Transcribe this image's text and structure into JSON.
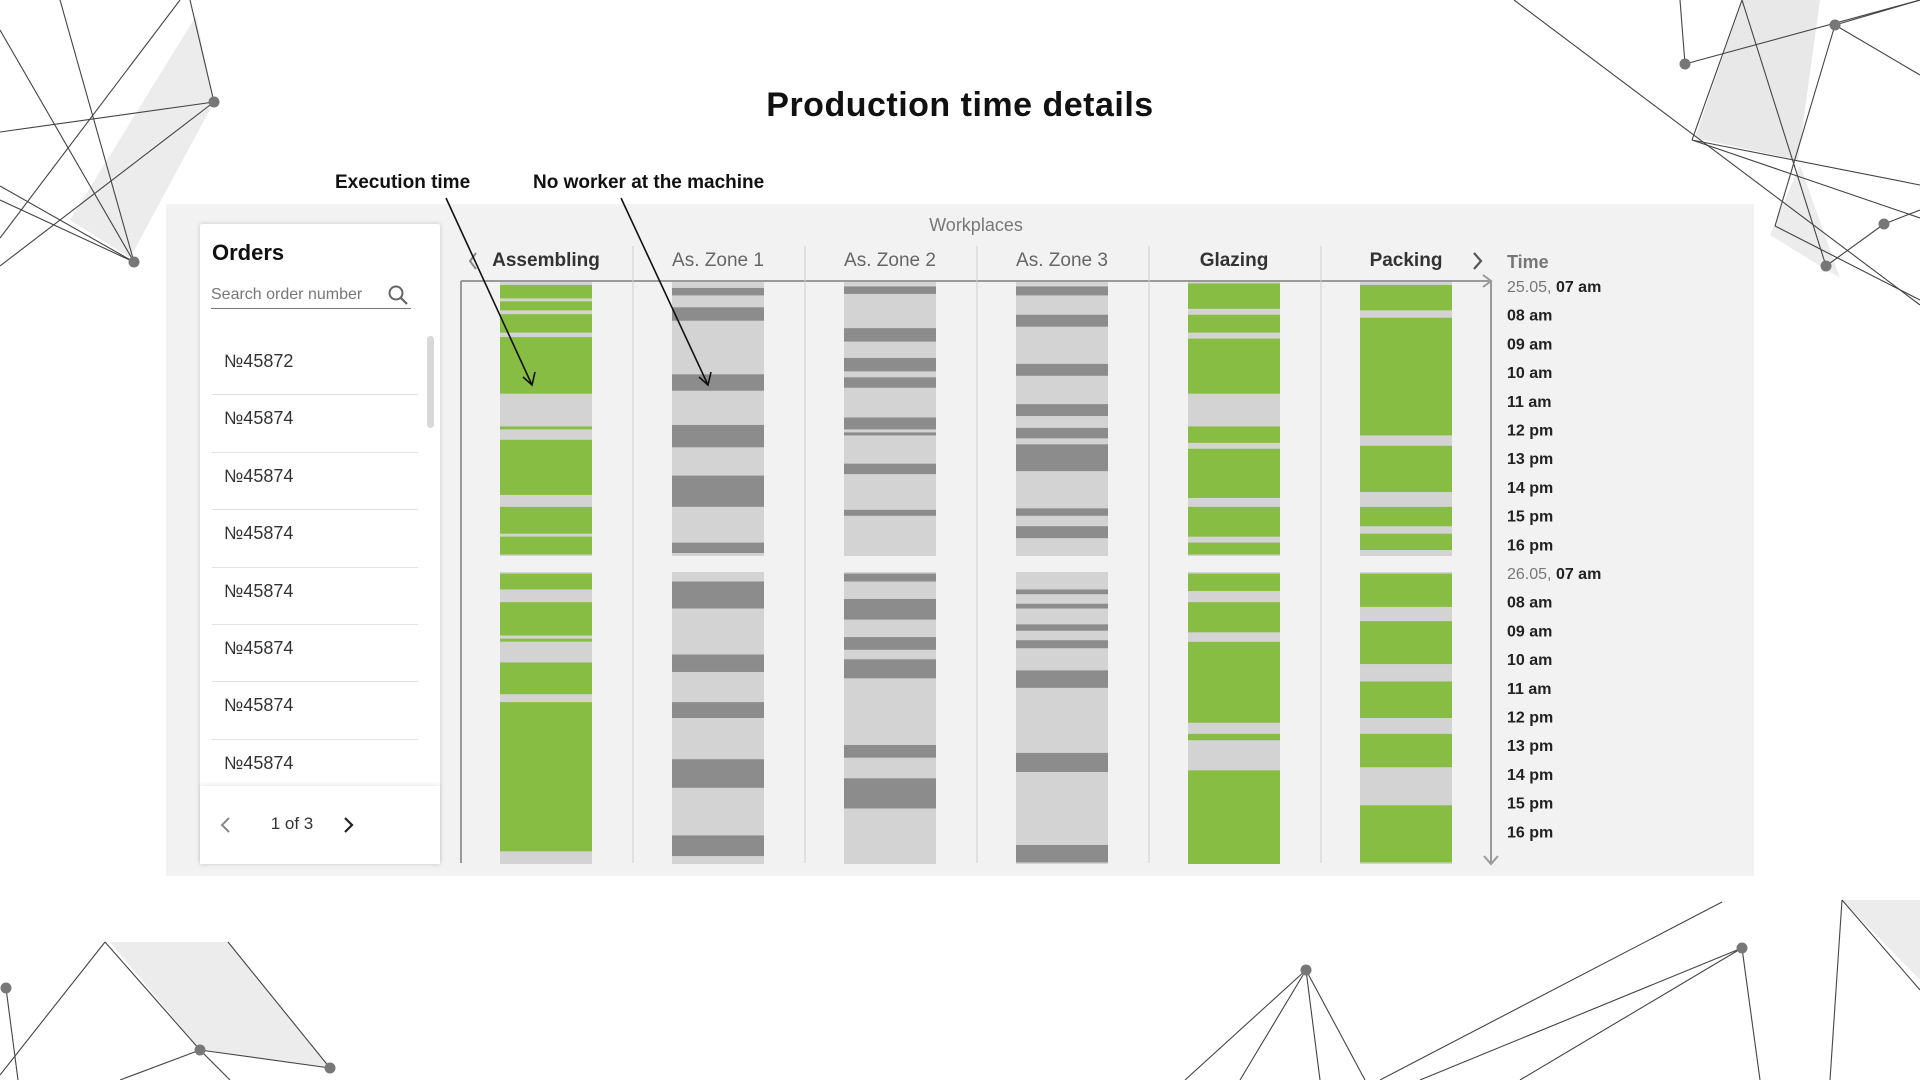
{
  "page_title": "Production time details",
  "annotations": {
    "execution_time": "Execution time",
    "no_worker": "No worker at the machine"
  },
  "orders_panel": {
    "title": "Orders",
    "search_placeholder": "Search order number",
    "items": [
      "№45872",
      "№45874",
      "№45874",
      "№45874",
      "№45874",
      "№45874",
      "№45874",
      "№45874"
    ],
    "pagination": "1 of 3"
  },
  "workplaces_label": "Workplaces",
  "time_label": "Time",
  "colors": {
    "execution": "#88bd44",
    "no_worker": "#8c8c8c",
    "idle": "#d3d3d3"
  },
  "columns": [
    {
      "name": "Assembling",
      "muted": false
    },
    {
      "name": "As. Zone 1",
      "muted": true
    },
    {
      "name": "As. Zone 2",
      "muted": true
    },
    {
      "name": "As. Zone 3",
      "muted": true
    },
    {
      "name": "Glazing",
      "muted": false
    },
    {
      "name": "Packing",
      "muted": false
    }
  ],
  "time_axis": {
    "days": [
      {
        "date": "25.05,",
        "hours": [
          "07 am",
          "08 am",
          "09 am",
          "10 am",
          "11 am",
          "12 pm",
          "13 pm",
          "14 pm",
          "15 pm",
          "16 pm"
        ]
      },
      {
        "date": "26.05,",
        "hours": [
          "07 am",
          "08 am",
          "09 am",
          "10 am",
          "11 am",
          "12 pm",
          "13 pm",
          "14 pm",
          "15 pm",
          "16 pm"
        ]
      }
    ]
  },
  "schedule": {
    "assembling": {
      "day1": [
        [
          "g",
          7.1,
          7.55
        ],
        [
          "g",
          7.65,
          7.95
        ],
        [
          "g",
          8.08,
          8.7
        ],
        [
          "g",
          8.85,
          10.75
        ],
        [
          "g",
          11.85,
          11.95
        ],
        [
          "g",
          12.3,
          14.15
        ],
        [
          "g",
          14.55,
          15.45
        ],
        [
          "g",
          15.55,
          16.15
        ]
      ],
      "day2": [
        [
          "g",
          7.05,
          7.55
        ],
        [
          "g",
          7.95,
          9.0
        ],
        [
          "g",
          9.1,
          9.1
        ],
        [
          "g",
          9.85,
          10.85
        ],
        [
          "g",
          11.1,
          15.8
        ]
      ]
    },
    "zone1": {
      "day1": [
        [
          "d",
          7.2,
          7.45
        ],
        [
          "d",
          7.85,
          8.3
        ],
        [
          "d",
          10.1,
          10.65
        ],
        [
          "d",
          11.8,
          12.55
        ],
        [
          "d",
          13.5,
          14.55
        ],
        [
          "d",
          15.75,
          16.1
        ]
      ],
      "day2": [
        [
          "d",
          7.3,
          8.15
        ],
        [
          "d",
          9.6,
          10.15
        ],
        [
          "d",
          11.1,
          11.6
        ],
        [
          "d",
          12.9,
          13.8
        ],
        [
          "d",
          15.3,
          15.95
        ]
      ]
    },
    "zone2": {
      "day1": [
        [
          "d",
          7.15,
          7.4
        ],
        [
          "d",
          8.55,
          9.0
        ],
        [
          "d",
          9.55,
          10.0
        ],
        [
          "d",
          10.2,
          10.55
        ],
        [
          "d",
          11.55,
          11.95
        ],
        [
          "d",
          12.05,
          12.15
        ],
        [
          "d",
          13.1,
          13.45
        ],
        [
          "d",
          14.65,
          14.85
        ]
      ],
      "day2": [
        [
          "d",
          7.05,
          7.3
        ],
        [
          "d",
          7.85,
          8.5
        ],
        [
          "d",
          9.05,
          9.45
        ],
        [
          "d",
          9.75,
          10.35
        ],
        [
          "d",
          12.45,
          12.85
        ],
        [
          "d",
          13.5,
          14.45
        ]
      ]
    },
    "zone3": {
      "day1": [
        [
          "d",
          7.15,
          7.45
        ],
        [
          "d",
          8.1,
          8.5
        ],
        [
          "d",
          9.75,
          10.15
        ],
        [
          "d",
          11.1,
          11.5
        ],
        [
          "d",
          11.9,
          12.25
        ],
        [
          "d",
          12.45,
          13.35
        ],
        [
          "d",
          14.6,
          14.85
        ],
        [
          "d",
          15.2,
          15.6
        ]
      ],
      "day2": [
        [
          "d",
          7.55,
          7.7
        ],
        [
          "d",
          8.0,
          8.15
        ],
        [
          "d",
          8.65,
          8.85
        ],
        [
          "d",
          9.15,
          9.4
        ],
        [
          "d",
          10.1,
          10.65
        ],
        [
          "d",
          12.7,
          13.3
        ],
        [
          "d",
          15.6,
          16.15
        ]
      ]
    },
    "glazing": {
      "day1": [
        [
          "g",
          7.05,
          7.9
        ],
        [
          "g",
          8.1,
          8.7
        ],
        [
          "g",
          8.9,
          10.75
        ],
        [
          "g",
          11.85,
          12.4
        ],
        [
          "g",
          12.6,
          14.25
        ],
        [
          "g",
          14.55,
          15.55
        ],
        [
          "g",
          15.75,
          16.15
        ]
      ],
      "day2": [
        [
          "g",
          7.05,
          7.6
        ],
        [
          "g",
          7.95,
          8.9
        ],
        [
          "g",
          9.2,
          11.75
        ],
        [
          "g",
          12.1,
          12.3
        ],
        [
          "g",
          13.25,
          16.2
        ]
      ]
    },
    "packing": {
      "day1": [
        [
          "g",
          7.1,
          7.95
        ],
        [
          "g",
          8.2,
          12.15
        ],
        [
          "g",
          12.5,
          14.05
        ],
        [
          "g",
          14.55,
          15.2
        ],
        [
          "g",
          15.45,
          16.0
        ]
      ],
      "day2": [
        [
          "g",
          7.05,
          8.1
        ],
        [
          "g",
          8.55,
          9.9
        ],
        [
          "g",
          10.45,
          11.6
        ],
        [
          "g",
          12.1,
          13.15
        ],
        [
          "g",
          14.35,
          16.15
        ]
      ]
    }
  }
}
